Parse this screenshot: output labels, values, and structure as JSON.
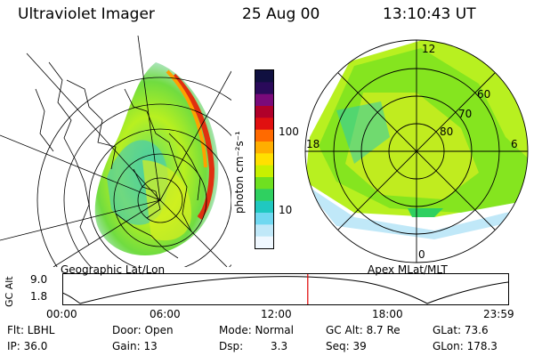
{
  "header": {
    "instrument": "Ultraviolet Imager",
    "date": "25 Aug 00",
    "time": "13:10:43 UT"
  },
  "colorbar": {
    "label": "photon cm⁻²s⁻¹",
    "ticks": [
      "100",
      "10"
    ],
    "colors": [
      "#101040",
      "#2a0a5a",
      "#7a0a7a",
      "#b0002a",
      "#e01010",
      "#ff6a00",
      "#ffae00",
      "#ffe000",
      "#c8f000",
      "#6fe020",
      "#2fd060",
      "#20c8c0",
      "#70d8f0",
      "#c0e8f8",
      "#f0f8ff"
    ]
  },
  "left_panel": {
    "caption": "Geographic Lat/Lon"
  },
  "right_panel": {
    "caption": "Apex MLat/MLT",
    "mlt_labels": [
      "12",
      "18",
      "6",
      "0"
    ],
    "lat_labels": [
      "60",
      "70",
      "80"
    ]
  },
  "timeline": {
    "ylabel": "GC Alt",
    "y_ticks": [
      "9.0",
      "1.8"
    ],
    "x_ticks": [
      "00:00",
      "06:00",
      "12:00",
      "18:00",
      "23:59"
    ],
    "current_time_fraction": 0.5494
  },
  "info": {
    "col1": [
      "Flt: LBHL",
      "IP: 36.0"
    ],
    "col2": [
      "Door: Open",
      "Gain: 13"
    ],
    "col3a": [
      "Mode: Normal",
      "Dsp:"
    ],
    "col3b": [
      "",
      "3.3"
    ],
    "col4": [
      "GC Alt: 8.7 Re",
      "Seq: 39"
    ],
    "col5": [
      "GLat: 73.6",
      "GLon: 178.3"
    ]
  }
}
